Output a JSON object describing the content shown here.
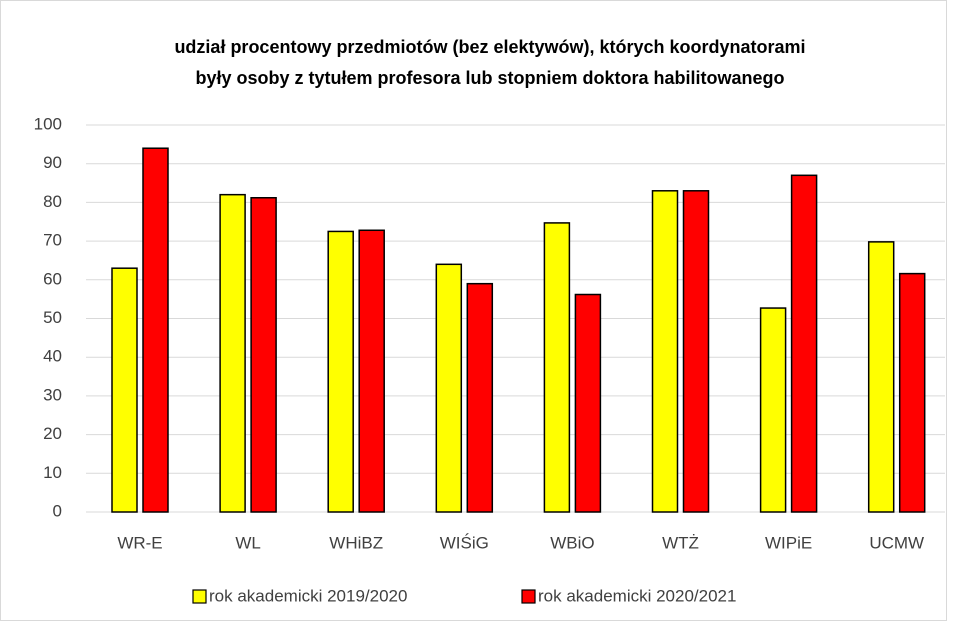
{
  "chart_data": {
    "type": "bar",
    "title": [
      "udział procentowy przedmiotów (bez elektywów), których koordynatorami",
      "były osoby z tytułem profesora lub stopniem doktora habilitowanego"
    ],
    "categories": [
      "WR-E",
      "WL",
      "WHiBZ",
      "WIŚiG",
      "WBiO",
      "WTŻ",
      "WIPiE",
      "UCMW"
    ],
    "series": [
      {
        "name": "rok akademicki 2019/2020",
        "color": "#ffff00",
        "values": [
          63,
          82,
          72.5,
          64,
          74.7,
          83,
          52.7,
          69.8
        ]
      },
      {
        "name": "rok akademicki 2020/2021",
        "color": "#ff0000",
        "values": [
          94,
          81.2,
          72.8,
          59,
          56.2,
          83,
          87,
          61.6
        ]
      }
    ],
    "ylim": [
      0,
      100
    ],
    "yticks": [
      0,
      10,
      20,
      30,
      40,
      50,
      60,
      70,
      80,
      90,
      100
    ],
    "grid": true,
    "legend": "bottom"
  }
}
